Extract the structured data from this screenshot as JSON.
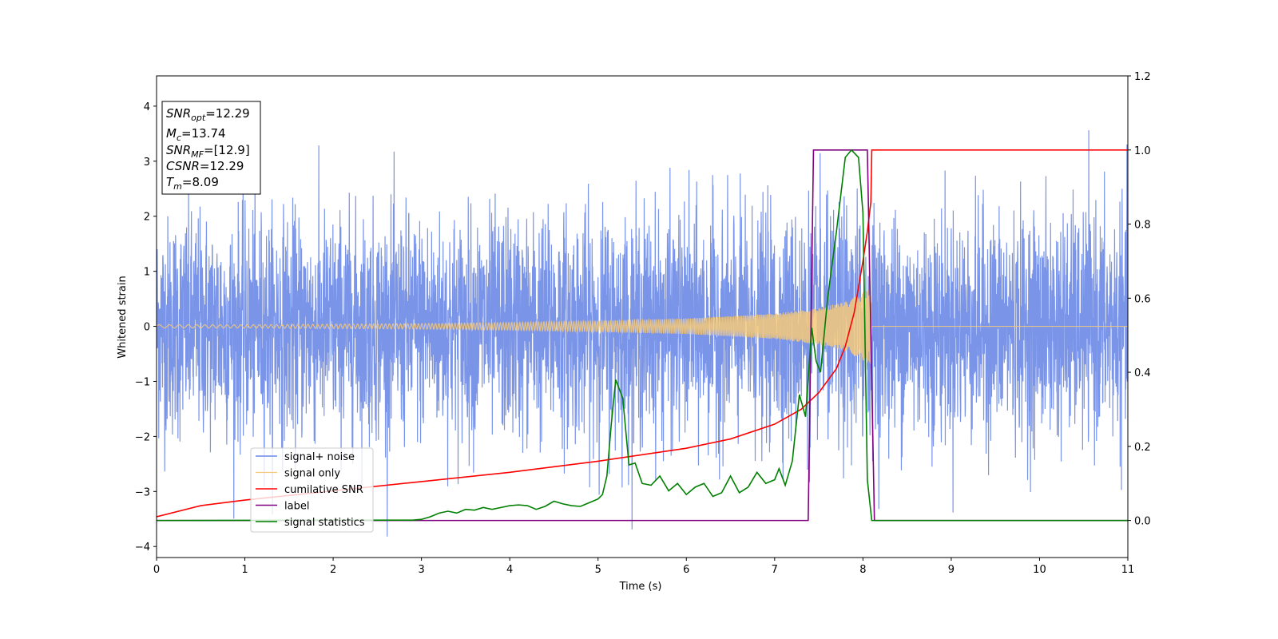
{
  "chart_data": {
    "type": "line",
    "xlabel": "Time (s)",
    "ylabel": "Whitened strain",
    "xlim": [
      0,
      11
    ],
    "ylim_left": [
      -4.2,
      4.55
    ],
    "ylim_right": [
      -0.1,
      1.2
    ],
    "x_ticks": [
      0,
      1,
      2,
      3,
      4,
      5,
      6,
      7,
      8,
      9,
      10,
      11
    ],
    "y_ticks_left": [
      -4,
      -3,
      -2,
      -1,
      0,
      1,
      2,
      3,
      4
    ],
    "y_ticks_right": [
      0.0,
      0.2,
      0.4,
      0.6,
      0.8,
      1.0,
      1.2
    ],
    "grid": false,
    "legend_position": "lower-left",
    "info_box": [
      {
        "main": "SNR",
        "sub": "opt",
        "value": "=12.29"
      },
      {
        "main": "M",
        "sub": "c",
        "value": "=13.74"
      },
      {
        "main": "SNR",
        "sub": "MF",
        "value": "=[12.9]"
      },
      {
        "main": "CSNR",
        "sub": "",
        "value": "=12.29"
      },
      {
        "main": "T",
        "sub": "m",
        "value": "=8.09"
      }
    ],
    "series": [
      {
        "name": "signal+ noise",
        "axis": "left",
        "color": "#6b88e6",
        "description_values": {
          "noise_amplitude_approx": 2.0,
          "max_spike": 4.18,
          "min_spike": -3.82
        }
      },
      {
        "name": "signal only",
        "axis": "left",
        "color": "#f5c97a",
        "envelope": {
          "x": [
            0,
            1,
            2,
            3,
            4,
            5,
            6,
            7,
            7.5,
            7.8,
            8.0,
            8.09,
            8.1,
            11
          ],
          "amplitude": [
            0.03,
            0.03,
            0.04,
            0.05,
            0.07,
            0.1,
            0.14,
            0.23,
            0.33,
            0.45,
            0.62,
            0.7,
            0.0,
            0.0
          ]
        }
      },
      {
        "name": "cumilative SNR",
        "axis": "right",
        "color": "#ff0000",
        "x": [
          0,
          0.5,
          1,
          2,
          3,
          4,
          5,
          6,
          6.5,
          7,
          7.3,
          7.5,
          7.7,
          7.8,
          7.9,
          8.0,
          8.05,
          8.09,
          8.1,
          11
        ],
        "y": [
          0.01,
          0.04,
          0.055,
          0.08,
          0.105,
          0.13,
          0.16,
          0.195,
          0.22,
          0.26,
          0.3,
          0.345,
          0.41,
          0.47,
          0.56,
          0.7,
          0.78,
          0.86,
          1.0,
          1.0
        ]
      },
      {
        "name": "label",
        "axis": "right",
        "color": "#800080",
        "x": [
          0,
          7.38,
          7.44,
          8.05,
          8.13,
          11
        ],
        "y": [
          0.0,
          0.0,
          1.0,
          1.0,
          0.0,
          0.0
        ]
      },
      {
        "name": "signal statistics",
        "axis": "right",
        "color": "#008000",
        "x": [
          0,
          2.9,
          3.0,
          3.1,
          3.2,
          3.3,
          3.4,
          3.5,
          3.6,
          3.7,
          3.8,
          3.9,
          4.0,
          4.1,
          4.2,
          4.3,
          4.4,
          4.5,
          4.6,
          4.7,
          4.8,
          4.9,
          5.0,
          5.05,
          5.1,
          5.15,
          5.2,
          5.28,
          5.35,
          5.42,
          5.5,
          5.6,
          5.7,
          5.8,
          5.9,
          6.0,
          6.1,
          6.2,
          6.3,
          6.4,
          6.5,
          6.6,
          6.7,
          6.8,
          6.9,
          7.0,
          7.05,
          7.12,
          7.2,
          7.28,
          7.35,
          7.42,
          7.47,
          7.52,
          7.6,
          7.7,
          7.8,
          7.87,
          7.95,
          8.0,
          8.05,
          8.1,
          8.13,
          11
        ],
        "y": [
          0.0,
          0.001,
          0.003,
          0.01,
          0.02,
          0.025,
          0.02,
          0.03,
          0.028,
          0.035,
          0.03,
          0.035,
          0.04,
          0.042,
          0.04,
          0.03,
          0.038,
          0.052,
          0.045,
          0.04,
          0.038,
          0.048,
          0.058,
          0.07,
          0.12,
          0.26,
          0.38,
          0.33,
          0.15,
          0.155,
          0.1,
          0.095,
          0.12,
          0.08,
          0.1,
          0.07,
          0.09,
          0.1,
          0.065,
          0.075,
          0.12,
          0.075,
          0.09,
          0.13,
          0.1,
          0.11,
          0.14,
          0.095,
          0.16,
          0.34,
          0.28,
          0.52,
          0.43,
          0.4,
          0.6,
          0.78,
          0.98,
          1.0,
          0.98,
          0.83,
          0.11,
          0.0,
          0.0,
          0.0
        ]
      }
    ]
  }
}
